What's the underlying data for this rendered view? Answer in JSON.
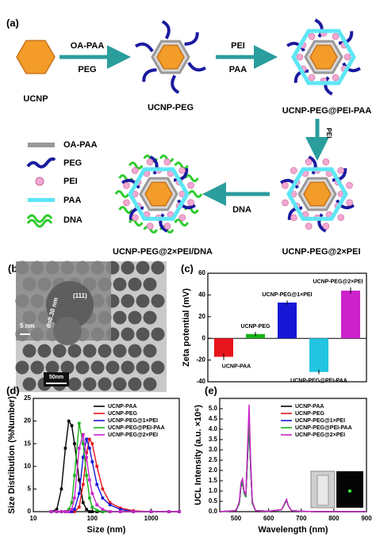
{
  "panel_a": {
    "label": "(a)",
    "nodes": [
      "UCNP",
      "UCNP-PEG",
      "UCNP-PEG@PEI-PAA",
      "UCNP-PEG@2×PEI",
      "UCNP-PEG@2×PEI/DNA"
    ],
    "arrows": [
      {
        "top": "OA-PAA",
        "bottom": "PEG"
      },
      {
        "top": "PEI",
        "bottom": "PAA"
      },
      {
        "label": "PEI"
      },
      {
        "label": "DNA"
      }
    ],
    "legend": [
      "OA-PAA",
      "PEG",
      "PEI",
      "PAA",
      "DNA"
    ]
  },
  "panel_b": {
    "label": "(b)",
    "annotations": [
      "(111)",
      "d=0.30 nm",
      "5 nm",
      "50nm"
    ]
  },
  "chart_data": [
    {
      "type": "bar",
      "panel": "(c)",
      "ylabel": "Zeta potential (mV)",
      "categories": [
        "UCNP-PAA",
        "UCNP-PEG",
        "UCNP-PEG@1×PEI",
        "UCNP-PEG@PEI-PAA",
        "UCNP-PEG@2×PEI"
      ],
      "values": [
        -17,
        4,
        33,
        -31,
        44
      ],
      "errors": [
        3,
        2,
        2,
        2,
        3
      ],
      "colors": [
        "#e8141b",
        "#1ab31a",
        "#1616d6",
        "#22c4e0",
        "#cc22cc"
      ],
      "ylim": [
        -40,
        60
      ],
      "yticks": [
        -40,
        -20,
        0,
        20,
        40,
        60
      ]
    },
    {
      "type": "line",
      "panel": "(d)",
      "xlabel": "Size (nm)",
      "ylabel": "Size Distribution (%Number)",
      "xscale": "log",
      "markers": true,
      "legend": "upper right",
      "x": [
        20,
        25,
        30,
        35,
        40,
        45,
        50,
        60,
        70,
        80,
        90,
        100,
        120,
        150,
        200,
        300,
        500,
        1000,
        2000,
        3000
      ],
      "xlim": [
        10,
        3000
      ],
      "xticks": [
        10,
        100,
        1000
      ],
      "ylim": [
        0,
        25
      ],
      "yticks": [
        0,
        5,
        10,
        15,
        20,
        25
      ],
      "series": [
        {
          "name": "UCNP-PAA",
          "color": "#000000",
          "values": [
            0,
            0.5,
            5,
            14,
            20,
            19,
            15,
            7,
            2,
            0.5,
            0,
            0,
            0,
            0,
            0,
            0,
            0,
            0,
            0,
            0
          ]
        },
        {
          "name": "UCNP-PEG",
          "color": "#e8141b",
          "values": [
            0,
            0,
            0,
            0,
            0,
            0,
            0,
            1,
            6,
            13,
            16,
            15,
            10,
            5,
            2,
            0.8,
            0.2,
            0,
            0,
            0
          ]
        },
        {
          "name": "UCNP-PEG@1×PEI",
          "color": "#1616d6",
          "values": [
            0,
            0,
            0,
            0,
            0,
            0,
            0.5,
            4,
            12,
            16,
            14,
            11,
            6,
            3,
            1.5,
            0.5,
            0,
            0,
            0,
            0
          ]
        },
        {
          "name": "UCNP-PEG@PEI-PAA",
          "color": "#1ab31a",
          "values": [
            0,
            0,
            0,
            0,
            0.5,
            2,
            8,
            19.5,
            15,
            8,
            3,
            1,
            0.3,
            0,
            0,
            0,
            0,
            0,
            0,
            0
          ]
        },
        {
          "name": "UCNP-PEG@2×PEI",
          "color": "#cc22cc",
          "values": [
            0,
            0,
            0,
            0,
            0,
            0.5,
            3,
            14,
            17,
            12,
            7,
            4,
            1.5,
            0.5,
            0,
            0,
            0,
            0,
            0,
            0
          ]
        }
      ]
    },
    {
      "type": "line",
      "panel": "(e)",
      "xlabel": "Wavelength (nm)",
      "ylabel": "UCL Intensity (a.u. ×10⁶)",
      "markers": false,
      "legend": "upper right",
      "x": [
        450,
        500,
        510,
        515,
        520,
        525,
        530,
        535,
        540,
        545,
        550,
        560,
        600,
        640,
        650,
        655,
        660,
        670,
        700,
        750,
        800,
        850,
        900
      ],
      "xlim": [
        450,
        900
      ],
      "xticks": [
        500,
        600,
        700,
        800,
        900
      ],
      "ylim": [
        0,
        5.5
      ],
      "yticks": [
        {
          "value": 0,
          "label": "0.0"
        },
        0.5,
        {
          "value": 1,
          "label": "1.0"
        },
        1.5,
        {
          "value": 2,
          "label": "2.0"
        },
        2.5,
        {
          "value": 3,
          "label": "3.0"
        },
        3.5,
        {
          "value": 4,
          "label": "4.0"
        },
        4.5,
        {
          "value": 5,
          "label": "5.0"
        }
      ],
      "series": [
        {
          "name": "UCNP-PAA",
          "color": "#000000",
          "values": [
            0,
            0.05,
            0.4,
            1.2,
            1.4,
            0.9,
            0.7,
            2.5,
            4.2,
            2.0,
            0.4,
            0.05,
            0.02,
            0.1,
            0.4,
            0.55,
            0.3,
            0.05,
            0.02,
            0,
            0,
            0,
            0
          ]
        },
        {
          "name": "UCNP-PEG",
          "color": "#e8141b",
          "values": [
            0,
            0.05,
            0.4,
            1.2,
            1.45,
            0.9,
            0.7,
            2.5,
            4.3,
            2.0,
            0.4,
            0.05,
            0.02,
            0.1,
            0.4,
            0.55,
            0.3,
            0.05,
            0.02,
            0,
            0,
            0,
            0
          ]
        },
        {
          "name": "UCNP-PEG@1×PEI",
          "color": "#1616d6",
          "values": [
            0,
            0.05,
            0.4,
            1.2,
            1.4,
            0.9,
            0.7,
            2.5,
            4.2,
            2.0,
            0.4,
            0.05,
            0.02,
            0.1,
            0.4,
            0.55,
            0.3,
            0.05,
            0.02,
            0,
            0,
            0,
            0
          ]
        },
        {
          "name": "UCNP-PEG@PEI-PAA",
          "color": "#1ab31a",
          "values": [
            0,
            0.05,
            0.4,
            1.2,
            1.5,
            0.9,
            0.7,
            2.6,
            4.4,
            2.1,
            0.4,
            0.05,
            0.02,
            0.1,
            0.4,
            0.58,
            0.3,
            0.05,
            0.02,
            0,
            0,
            0,
            0
          ]
        },
        {
          "name": "UCNP-PEG@2×PEI",
          "color": "#cc22cc",
          "values": [
            0,
            0.05,
            0.5,
            1.4,
            1.6,
            1.0,
            0.8,
            3.0,
            5.2,
            2.4,
            0.5,
            0.05,
            0.02,
            0.1,
            0.45,
            0.6,
            0.3,
            0.05,
            0.02,
            0,
            0,
            0,
            0
          ]
        }
      ]
    }
  ]
}
